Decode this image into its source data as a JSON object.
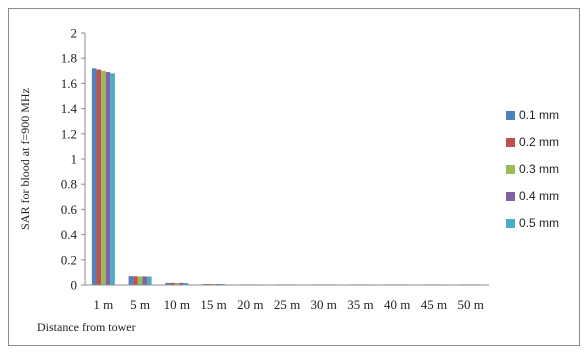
{
  "chart_data": {
    "type": "bar",
    "title": "",
    "xlabel": "Distance from tower",
    "ylabel": "SAR for blood at f=900 MHz",
    "ylim": [
      0,
      2
    ],
    "y_ticks": [
      0,
      0.2,
      0.4,
      0.6,
      0.8,
      1,
      1.2,
      1.4,
      1.6,
      1.8,
      2
    ],
    "y_tick_labels": [
      "0",
      "0.2",
      "0.4",
      "0.6",
      "0.8",
      "1",
      "1.2",
      "1.4",
      "1.6",
      "1.8",
      "2"
    ],
    "grid": false,
    "legend_position": "right",
    "categories": [
      "1 m",
      "5 m",
      "10 m",
      "15 m",
      "20 m",
      "25 m",
      "30 m",
      "35 m",
      "40 m",
      "45 m",
      "50 m"
    ],
    "series": [
      {
        "name": "0.1 mm",
        "color": "#4f81bd",
        "values": [
          1.72,
          0.07,
          0.017,
          0.008,
          0.004,
          0.003,
          0.002,
          0.0015,
          0.001,
          0.0009,
          0.0007
        ]
      },
      {
        "name": "0.2 mm",
        "color": "#c0504d",
        "values": [
          1.71,
          0.069,
          0.017,
          0.008,
          0.004,
          0.003,
          0.002,
          0.0015,
          0.001,
          0.0009,
          0.0007
        ]
      },
      {
        "name": "0.3 mm",
        "color": "#9bbb59",
        "values": [
          1.7,
          0.068,
          0.017,
          0.008,
          0.004,
          0.003,
          0.002,
          0.0014,
          0.001,
          0.0008,
          0.0007
        ]
      },
      {
        "name": "0.4 mm",
        "color": "#8064a2",
        "values": [
          1.69,
          0.068,
          0.017,
          0.008,
          0.004,
          0.003,
          0.002,
          0.0014,
          0.001,
          0.0008,
          0.0007
        ]
      },
      {
        "name": "0.5 mm",
        "color": "#4bacc6",
        "values": [
          1.68,
          0.067,
          0.016,
          0.008,
          0.004,
          0.003,
          0.002,
          0.0014,
          0.001,
          0.0008,
          0.0007
        ]
      }
    ]
  }
}
